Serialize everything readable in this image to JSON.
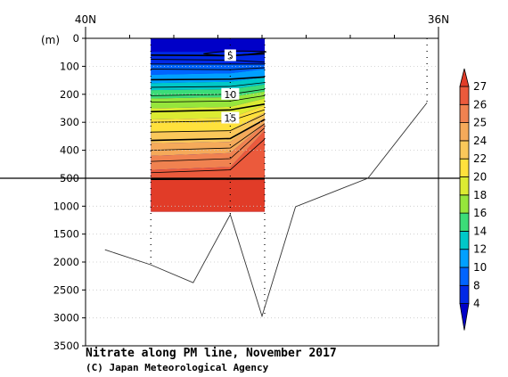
{
  "chart_data": {
    "type": "heatmap",
    "title": "Nitrate along PM line, November 2017",
    "credit": "(C) Japan Meteorological Agency",
    "x_axis": {
      "direction": "latitude",
      "left_label": "40N",
      "right_label": "36N",
      "range": [
        40.0,
        36.0
      ]
    },
    "y_axis": {
      "unit_label": "(m)",
      "upper_ticks": [
        "0",
        "100",
        "200",
        "300",
        "400",
        "500"
      ],
      "lower_ticks": [
        "1000",
        "1500",
        "2000",
        "2500",
        "3000",
        "3500"
      ],
      "upper_range": [
        0,
        500
      ],
      "lower_range": [
        500,
        3500
      ],
      "inverted": true,
      "break_depth": 500
    },
    "colorbar": {
      "labels": [
        "4",
        "8",
        "10",
        "12",
        "14",
        "16",
        "18",
        "20",
        "22",
        "24",
        "25",
        "26",
        "27"
      ],
      "colors": [
        "#0000c8",
        "#0028e6",
        "#0064ff",
        "#00a0ff",
        "#00c8c8",
        "#3cdc78",
        "#96e63c",
        "#dceb32",
        "#ffe13c",
        "#fac85a",
        "#f5aa5a",
        "#f08250",
        "#eb5a3c",
        "#e13c28"
      ]
    },
    "data_extent": {
      "lat_north": 39.26,
      "lat_south": 37.97,
      "max_depth": 1100
    },
    "contour_labels": [
      "5",
      "10",
      "15"
    ],
    "stations": [
      {
        "lat": 39.26,
        "bottom": 2050
      },
      {
        "lat": 38.36,
        "bottom": 1150
      },
      {
        "lat": 37.97,
        "bottom": 2950
      },
      {
        "lat": 36.13,
        "bottom": 230
      }
    ],
    "bottom_profile": [
      {
        "lat": 39.78,
        "depth": 1780
      },
      {
        "lat": 39.26,
        "depth": 2050
      },
      {
        "lat": 38.78,
        "depth": 2370
      },
      {
        "lat": 38.36,
        "depth": 1150
      },
      {
        "lat": 38.0,
        "depth": 2970
      },
      {
        "lat": 37.62,
        "depth": 1010
      },
      {
        "lat": 36.8,
        "depth": 500
      },
      {
        "lat": 36.13,
        "depth": 230
      }
    ]
  }
}
